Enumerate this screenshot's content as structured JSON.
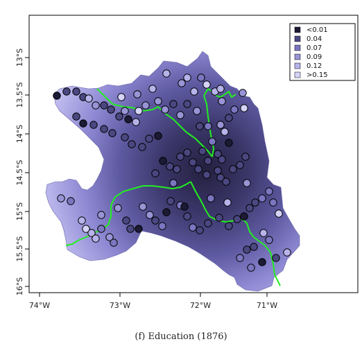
{
  "caption": "(f) Education (1876)",
  "map": {
    "x_ticks": [
      "74°W",
      "73°W",
      "72°W",
      "71°W"
    ],
    "y_ticks": [
      "13°S",
      "13.5°S",
      "14°S",
      "14.5°S",
      "15°S",
      "15.5°S",
      "16°S"
    ],
    "legend": [
      {
        "label": "<0.01",
        "color": "#1d1a35"
      },
      {
        "label": "0.04",
        "color": "#4b4780"
      },
      {
        "label": "0.07",
        "color": "#7a76c0"
      },
      {
        "label": "0.09",
        "color": "#9994d6"
      },
      {
        "label": "0.12",
        "color": "#b7b3ea"
      },
      {
        "label": ">0.15",
        "color": "#d6d3f8"
      }
    ],
    "boundary_color": "#22ee22",
    "point_values": [
      0.01,
      0.03,
      0.03,
      0.04,
      0.12,
      0.1,
      0.04,
      0.03,
      0.05,
      0.02,
      0.03,
      0.02,
      0.04,
      0.05,
      0.05,
      0.04,
      0.04,
      0.04,
      0.03,
      0.02,
      0.01,
      0.05,
      0.04,
      0.03,
      0.04,
      0.03,
      0.03,
      0.04,
      0.05,
      0.04,
      0.05,
      0.03,
      0.04,
      0.03,
      0.02,
      0.06,
      0.04,
      0.03,
      0.05,
      0.03,
      0.13,
      0.1,
      0.12,
      0.12,
      0.07,
      0.15,
      0.12,
      0.09,
      0.12,
      0.14,
      0.1,
      0.06,
      0.04,
      0.1,
      0.11,
      0.07,
      0.05,
      0.09,
      0.05,
      0.08,
      0.05,
      0.08,
      0.1,
      0.1,
      0.14,
      0.12,
      0.09,
      0.16,
      0.09,
      0.11,
      0.1,
      0.06,
      0.12,
      0.16,
      0.12,
      0.12,
      0.09,
      0.06,
      0.08,
      0.07,
      0.09,
      0.05,
      0.05,
      0.02,
      0.08,
      0.1,
      0.04,
      0.06,
      0.01,
      0.05,
      0.06,
      0.05,
      0.06,
      0.04,
      0.03,
      0.04,
      0.04,
      0.05,
      0.02,
      0.03,
      0.05,
      0.06,
      0.07,
      0.06,
      0.14,
      0.12,
      0.06,
      0.05,
      0.05,
      0.06,
      0.07,
      0.01,
      0.05,
      0.12,
      0.1,
      0.11,
      0.06,
      0.01,
      0.07,
      0.03
    ]
  }
}
